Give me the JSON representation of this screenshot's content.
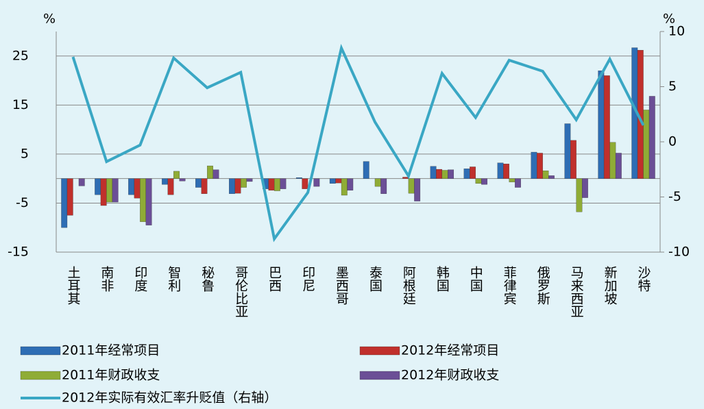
{
  "chart_data": {
    "type": "bar",
    "y_label": "%",
    "y2_label": "%",
    "categories": [
      "土耳其",
      "南非",
      "印度",
      "智利",
      "秘鲁",
      "哥伦比亚",
      "巴西",
      "印尼",
      "墨西哥",
      "泰国",
      "阿根廷",
      "韩国",
      "中国",
      "菲律宾",
      "俄罗斯",
      "马来西亚",
      "新加坡",
      "沙特"
    ],
    "series": [
      {
        "name": "2011年经常项目",
        "color": "#2e6db4",
        "values": [
          -10,
          -3.3,
          -3.3,
          -1.2,
          -1.8,
          -3.1,
          -2.1,
          0.2,
          -1,
          3.5,
          0,
          2.5,
          2,
          3.2,
          5.4,
          11.2,
          22,
          26.7
        ]
      },
      {
        "name": "2012年经常项目",
        "color": "#c0302c",
        "values": [
          -7.5,
          -5.5,
          -4,
          -3.3,
          -3.1,
          -3,
          -2.4,
          -2.1,
          -0.9,
          0,
          0.3,
          1.9,
          2.4,
          3,
          5.2,
          7.8,
          21,
          26.2
        ]
      },
      {
        "name": "2011年财政收支",
        "color": "#8fac36",
        "values": [
          0,
          -4.8,
          -8.8,
          1.5,
          2.6,
          -1.8,
          -2.5,
          0,
          -3.4,
          -1.6,
          -3,
          1.7,
          -1,
          -0.7,
          1.6,
          -6.8,
          7.4,
          14
        ]
      },
      {
        "name": "2012年财政收支",
        "color": "#6b4f96",
        "values": [
          -1.5,
          -4.8,
          -9.5,
          -0.5,
          1.8,
          -0.6,
          -2.1,
          -1.6,
          -2.4,
          -3.1,
          -4.6,
          1.8,
          -1.2,
          -1.8,
          0.6,
          -3.9,
          5.2,
          16.8
        ]
      },
      {
        "name": "2012年实际有效汇率升贬值（右轴）",
        "type": "line",
        "axis": "y2",
        "color": "#3aa7c4",
        "values": [
          7.7,
          -1.8,
          -0.3,
          7.6,
          4.9,
          6.3,
          -8.8,
          -4.6,
          8.5,
          1.8,
          -3.1,
          6.2,
          2.2,
          7.4,
          6.4,
          2.0,
          7.5,
          1.5
        ]
      }
    ],
    "ylim": [
      -15,
      30
    ],
    "yticks": [
      -15,
      -5,
      5,
      15,
      25
    ],
    "y2lim": [
      -10,
      10
    ],
    "y2ticks": [
      -10,
      -5,
      0,
      5,
      10
    ],
    "grid": true
  }
}
